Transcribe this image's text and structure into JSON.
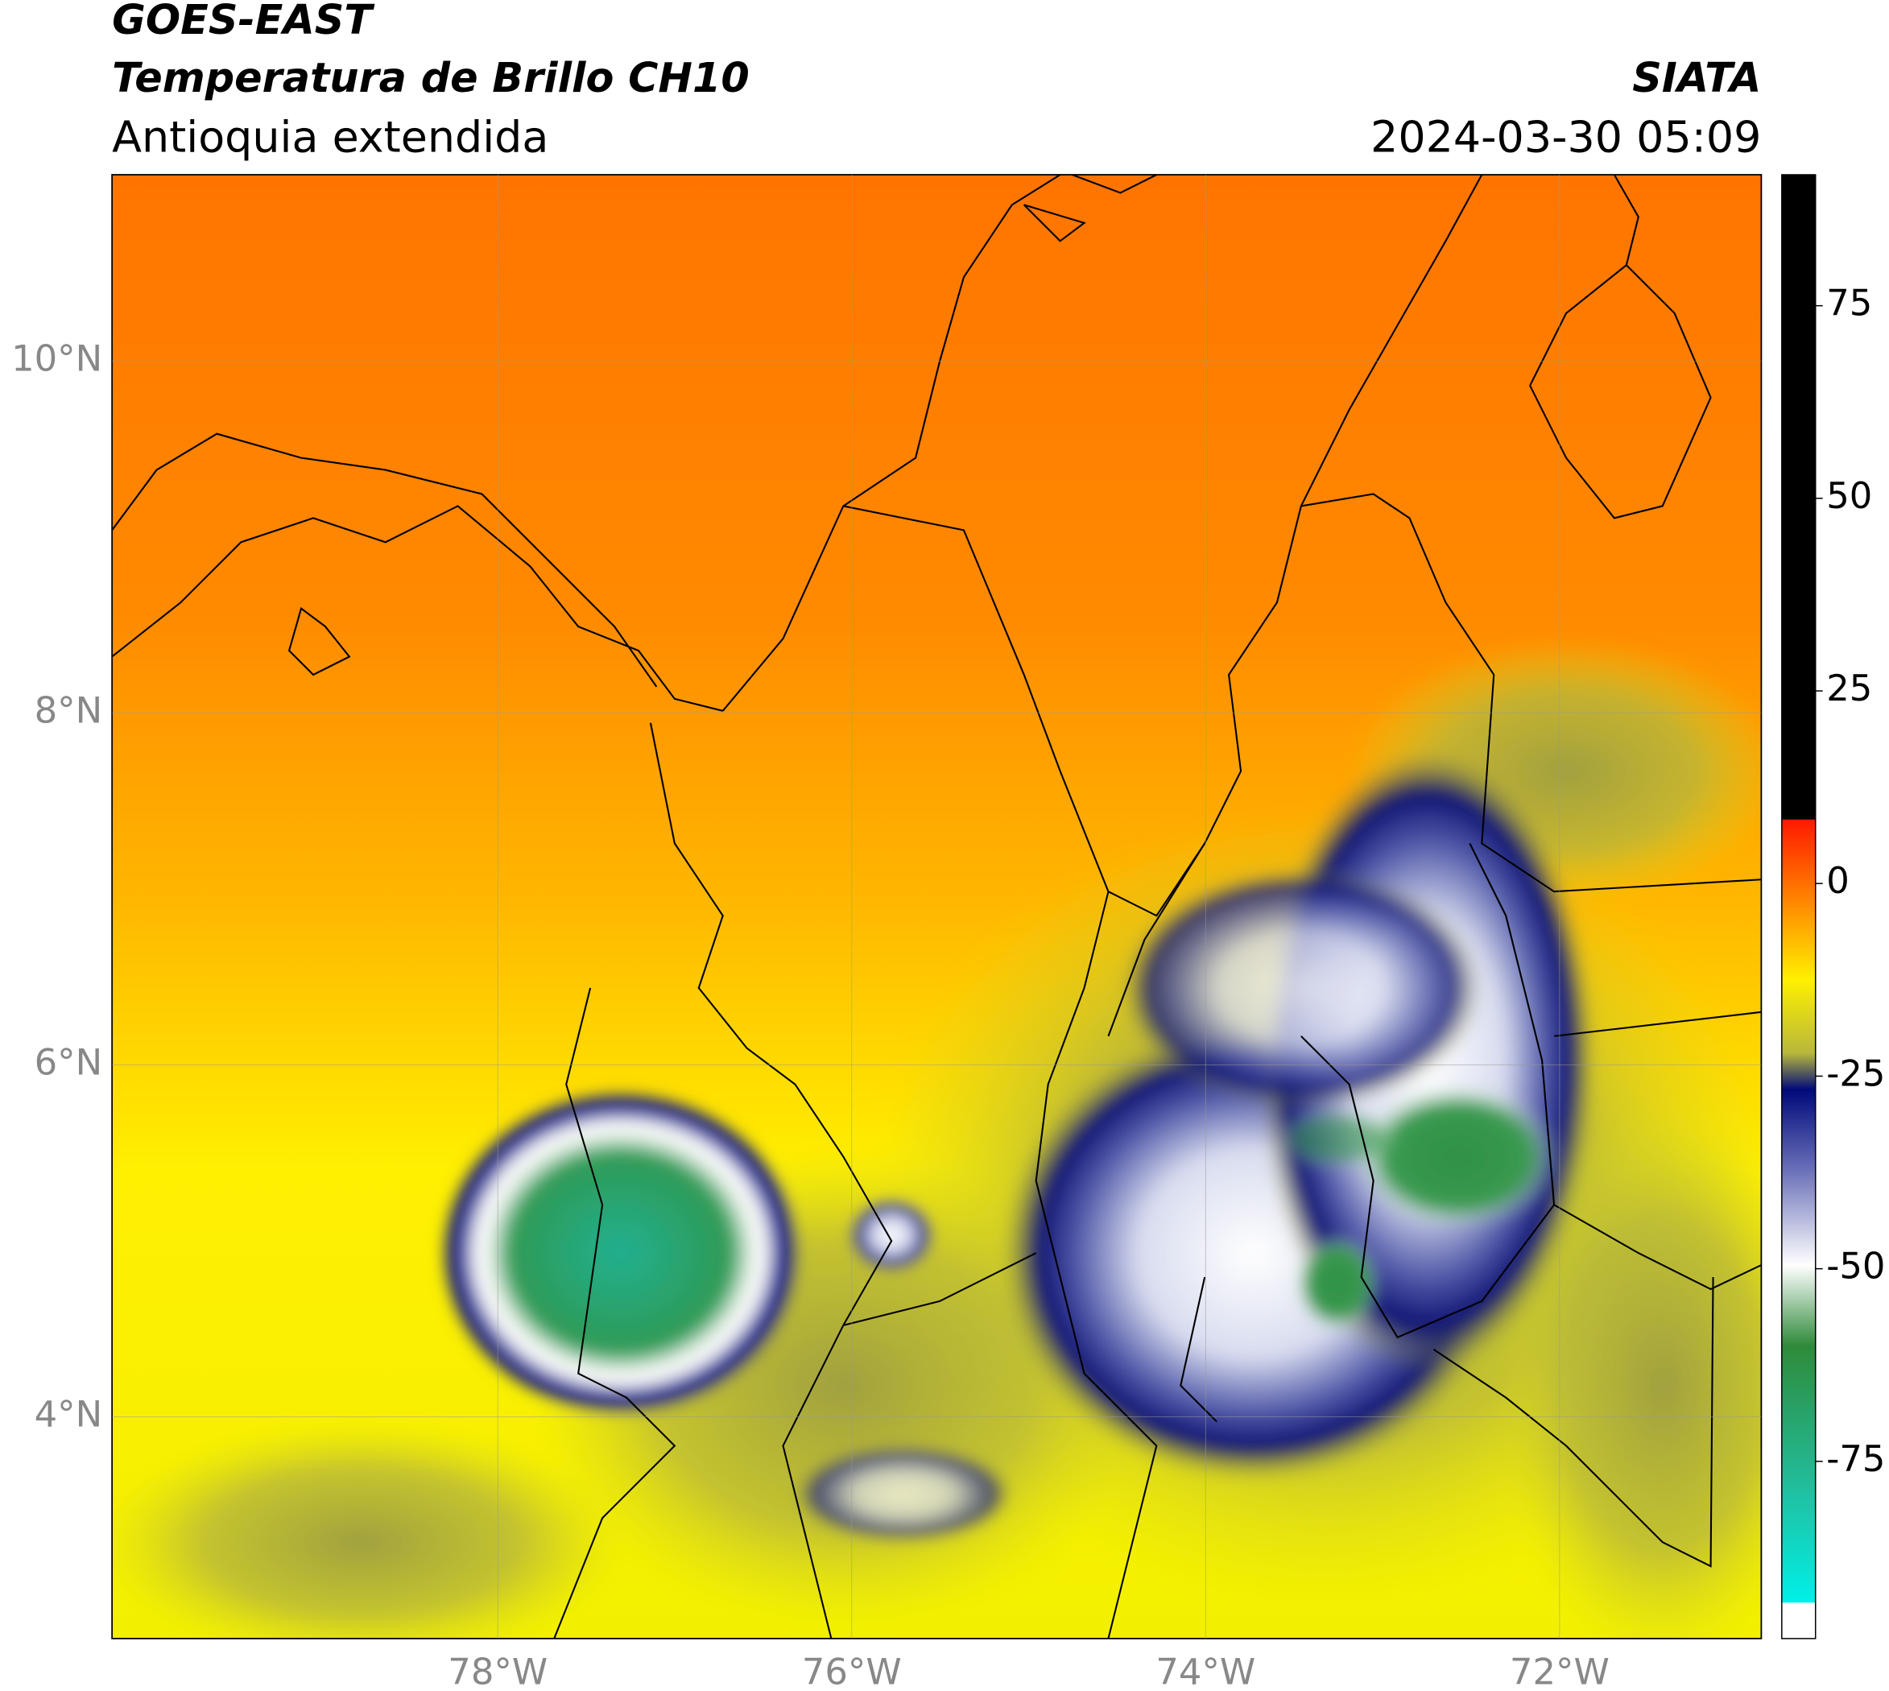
{
  "header": {
    "satellite": "GOES-EAST",
    "product": "Temperatura de Brillo CH10",
    "region": "Antioquia extendida",
    "source": "SIATA",
    "datetime": "2024-03-30 05:09"
  },
  "map": {
    "lon_range": [
      -80.18,
      -70.86
    ],
    "lat_range": [
      2.74,
      11.06
    ],
    "lon_ticks": [
      {
        "value": -78,
        "label": "78°W"
      },
      {
        "value": -76,
        "label": "76°W"
      },
      {
        "value": -74,
        "label": "74°W"
      },
      {
        "value": -72,
        "label": "72°W"
      }
    ],
    "lat_ticks": [
      {
        "value": 10,
        "label": "10°N"
      },
      {
        "value": 8,
        "label": "8°N"
      },
      {
        "value": 6,
        "label": "6°N"
      },
      {
        "value": 4,
        "label": "4°N"
      }
    ]
  },
  "colorbar": {
    "range": [
      -98,
      92
    ],
    "ticks": [
      75,
      50,
      25,
      0,
      -25,
      -50,
      -75
    ]
  }
}
